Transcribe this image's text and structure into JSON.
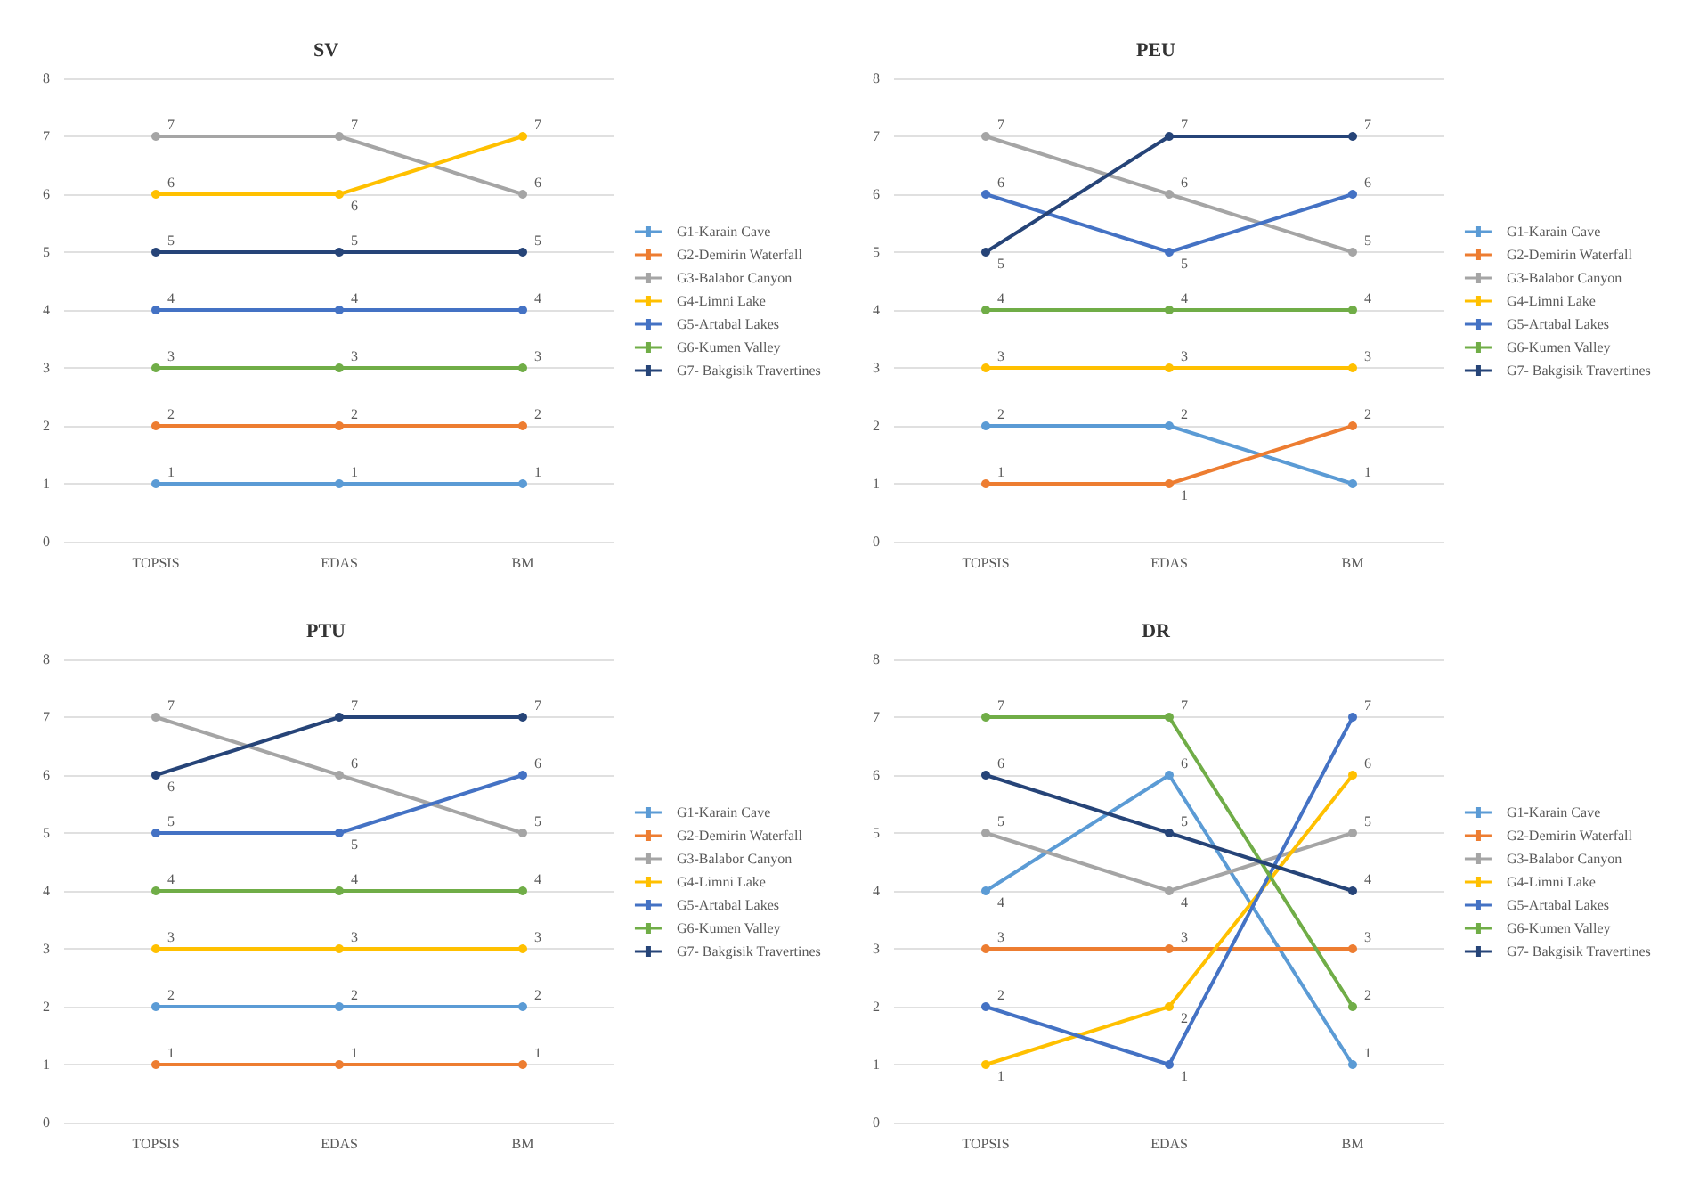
{
  "chart_data": [
    {
      "type": "line",
      "title": "SV",
      "categories": [
        "TOPSIS",
        "EDAS",
        "BM"
      ],
      "ylim": [
        0,
        8
      ],
      "yticks": [
        0,
        1,
        2,
        3,
        4,
        5,
        6,
        7,
        8
      ],
      "grid": "y",
      "legend": "right",
      "marker": "circle",
      "data_labels": true,
      "series": [
        {
          "name": "G1-Karain Cave",
          "color": "#5b9bd5",
          "values": [
            1,
            1,
            1
          ]
        },
        {
          "name": "G2-Demirin Waterfall",
          "color": "#ed7d31",
          "values": [
            2,
            2,
            2
          ]
        },
        {
          "name": "G3-Balabor Canyon",
          "color": "#a5a5a5",
          "values": [
            7,
            7,
            6
          ]
        },
        {
          "name": "G4-Limni Lake",
          "color": "#ffc000",
          "values": [
            6,
            6,
            7
          ]
        },
        {
          "name": "G5-Artabal Lakes",
          "color": "#4472c4",
          "values": [
            4,
            4,
            4
          ]
        },
        {
          "name": "G6-Kumen Valley",
          "color": "#70ad47",
          "values": [
            3,
            3,
            3
          ]
        },
        {
          "name": "G7- Bakgisik Travertines",
          "color": "#264478",
          "values": [
            5,
            5,
            5
          ]
        }
      ]
    },
    {
      "type": "line",
      "title": "PEU",
      "categories": [
        "TOPSIS",
        "EDAS",
        "BM"
      ],
      "ylim": [
        0,
        8
      ],
      "yticks": [
        0,
        1,
        2,
        3,
        4,
        5,
        6,
        7,
        8
      ],
      "grid": "y",
      "legend": "right",
      "marker": "circle",
      "data_labels": true,
      "series": [
        {
          "name": "G1-Karain Cave",
          "color": "#5b9bd5",
          "values": [
            2,
            2,
            1
          ]
        },
        {
          "name": "G2-Demirin Waterfall",
          "color": "#ed7d31",
          "values": [
            1,
            1,
            2
          ]
        },
        {
          "name": "G3-Balabor Canyon",
          "color": "#a5a5a5",
          "values": [
            7,
            6,
            5
          ]
        },
        {
          "name": "G4-Limni Lake",
          "color": "#ffc000",
          "values": [
            3,
            3,
            3
          ]
        },
        {
          "name": "G5-Artabal Lakes",
          "color": "#4472c4",
          "values": [
            6,
            5,
            6
          ]
        },
        {
          "name": "G6-Kumen Valley",
          "color": "#70ad47",
          "values": [
            4,
            4,
            4
          ]
        },
        {
          "name": "G7- Bakgisik Travertines",
          "color": "#264478",
          "values": [
            5,
            7,
            7
          ]
        }
      ]
    },
    {
      "type": "line",
      "title": "PTU",
      "categories": [
        "TOPSIS",
        "EDAS",
        "BM"
      ],
      "ylim": [
        0,
        8
      ],
      "yticks": [
        0,
        1,
        2,
        3,
        4,
        5,
        6,
        7,
        8
      ],
      "grid": "y",
      "legend": "right",
      "marker": "circle",
      "data_labels": true,
      "series": [
        {
          "name": "G1-Karain Cave",
          "color": "#5b9bd5",
          "values": [
            2,
            2,
            2
          ]
        },
        {
          "name": "G2-Demirin Waterfall",
          "color": "#ed7d31",
          "values": [
            1,
            1,
            1
          ]
        },
        {
          "name": "G3-Balabor Canyon",
          "color": "#a5a5a5",
          "values": [
            7,
            6,
            5
          ]
        },
        {
          "name": "G4-Limni Lake",
          "color": "#ffc000",
          "values": [
            3,
            3,
            3
          ]
        },
        {
          "name": "G5-Artabal Lakes",
          "color": "#4472c4",
          "values": [
            5,
            5,
            6
          ]
        },
        {
          "name": "G6-Kumen Valley",
          "color": "#70ad47",
          "values": [
            4,
            4,
            4
          ]
        },
        {
          "name": "G7- Bakgisik Travertines",
          "color": "#264478",
          "values": [
            6,
            7,
            7
          ]
        }
      ]
    },
    {
      "type": "line",
      "title": "DR",
      "categories": [
        "TOPSIS",
        "EDAS",
        "BM"
      ],
      "ylim": [
        0,
        8
      ],
      "yticks": [
        0,
        1,
        2,
        3,
        4,
        5,
        6,
        7,
        8
      ],
      "grid": "y",
      "legend": "right",
      "marker": "circle",
      "data_labels": true,
      "series": [
        {
          "name": "G1-Karain Cave",
          "color": "#5b9bd5",
          "values": [
            4,
            6,
            1
          ]
        },
        {
          "name": "G2-Demirin Waterfall",
          "color": "#ed7d31",
          "values": [
            3,
            3,
            3
          ]
        },
        {
          "name": "G3-Balabor Canyon",
          "color": "#a5a5a5",
          "values": [
            5,
            4,
            5
          ]
        },
        {
          "name": "G4-Limni Lake",
          "color": "#ffc000",
          "values": [
            1,
            2,
            6
          ]
        },
        {
          "name": "G5-Artabal Lakes",
          "color": "#4472c4",
          "values": [
            2,
            1,
            7
          ]
        },
        {
          "name": "G6-Kumen Valley",
          "color": "#70ad47",
          "values": [
            7,
            7,
            2
          ]
        },
        {
          "name": "G7- Bakgisik Travertines",
          "color": "#264478",
          "values": [
            6,
            5,
            4
          ]
        }
      ]
    }
  ]
}
